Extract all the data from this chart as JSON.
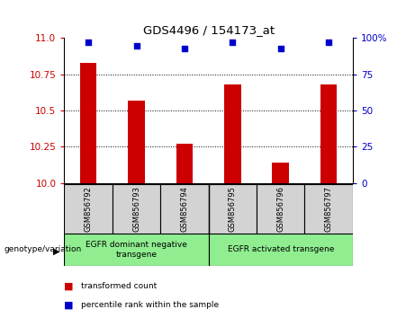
{
  "title": "GDS4496 / 154173_at",
  "samples": [
    "GSM856792",
    "GSM856793",
    "GSM856794",
    "GSM856795",
    "GSM856796",
    "GSM856797"
  ],
  "red_values": [
    10.83,
    10.57,
    10.27,
    10.68,
    10.14,
    10.68
  ],
  "blue_values": [
    97,
    95,
    93,
    97,
    93,
    97
  ],
  "ylim_left": [
    10.0,
    11.0
  ],
  "ylim_right": [
    0,
    100
  ],
  "yticks_left": [
    10.0,
    10.25,
    10.5,
    10.75,
    11.0
  ],
  "yticks_right": [
    0,
    25,
    50,
    75,
    100
  ],
  "groups": [
    {
      "label": "EGFR dominant negative\ntransgene",
      "samples_range": [
        0,
        2
      ]
    },
    {
      "label": "EGFR activated transgene",
      "samples_range": [
        3,
        5
      ]
    }
  ],
  "group_label_prefix": "genotype/variation",
  "legend_red_label": "transformed count",
  "legend_blue_label": "percentile rank within the sample",
  "bar_color": "#CC0000",
  "dot_color": "#0000CC",
  "axis_color_left": "#CC0000",
  "axis_color_right": "#0000CC",
  "bar_width": 0.35,
  "tick_label_area_color": "#d3d3d3",
  "group_area_color": "#90EE90"
}
